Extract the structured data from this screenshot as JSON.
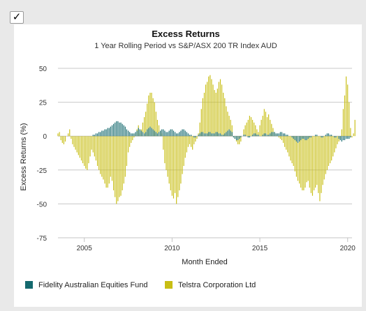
{
  "checkbox": {
    "checked": true,
    "glyph": "✓"
  },
  "chart_data": {
    "type": "bar",
    "title": "Excess Returns",
    "subtitle": "1 Year Rolling Period vs S&P/ASX 200 TR Index AUD",
    "xlabel": "Month Ended",
    "ylabel": "Excess Returns (%)",
    "ylim": [
      -75,
      50
    ],
    "xlim": [
      2003.5,
      2020.25
    ],
    "y_ticks": [
      "50",
      "25",
      "0",
      "-25",
      "-50",
      "-75"
    ],
    "x_ticks": [
      "2005",
      "2010",
      "2015",
      "2020"
    ],
    "grid": true,
    "legend_position": "bottom-left",
    "month_step_years": 0.0833,
    "series": [
      {
        "name": "Fidelity Australian Equities Fund",
        "color": "#14696e",
        "segments": [
          {
            "start": 2003.5,
            "values": [
              0,
              0,
              0,
              0,
              0,
              0,
              0,
              0,
              0,
              0,
              0,
              0,
              0,
              0,
              0,
              0,
              0,
              0,
              0,
              0,
              0,
              0,
              0,
              0
            ]
          },
          {
            "start": 2005.5,
            "values": [
              1,
              1,
              2,
              2,
              3,
              3,
              4,
              4,
              5,
              5,
              6,
              6,
              7,
              8,
              9,
              10,
              11,
              11,
              10,
              10,
              9,
              8,
              7,
              5
            ]
          },
          {
            "start": 2007.5,
            "values": [
              4,
              3,
              2,
              2,
              2,
              3,
              4,
              6,
              5,
              4,
              3,
              2,
              3,
              5,
              6,
              7,
              6,
              5,
              4,
              3,
              2,
              3,
              4,
              5
            ]
          },
          {
            "start": 2009.5,
            "values": [
              5,
              4,
              3,
              3,
              4,
              5,
              5,
              4,
              3,
              2,
              2,
              3,
              4,
              5,
              5,
              4,
              3,
              2,
              1,
              1,
              0,
              -1,
              -1,
              0
            ]
          },
          {
            "start": 2011.5,
            "values": [
              1,
              2,
              3,
              3,
              2,
              2,
              2,
              3,
              3,
              2,
              2,
              2,
              3,
              3,
              2,
              2,
              1,
              1,
              2,
              3,
              4,
              5,
              4,
              3
            ]
          },
          {
            "start": 2013.5,
            "values": [
              -1,
              -2,
              -3,
              -3,
              -2,
              -1,
              0,
              1,
              1,
              0,
              -1,
              -1,
              0,
              1,
              2,
              2,
              1,
              1,
              0,
              0,
              1,
              2,
              2,
              1
            ]
          },
          {
            "start": 2015.5,
            "values": [
              1,
              2,
              3,
              3,
              3,
              2,
              2,
              2,
              3,
              3,
              2,
              2,
              1,
              1,
              0,
              0,
              -1,
              -2,
              -3,
              -4,
              -5,
              -4,
              -3,
              -2
            ]
          },
          {
            "start": 2017.5,
            "values": [
              -2,
              -3,
              -3,
              -2,
              -1,
              -1,
              0,
              0,
              1,
              1,
              0,
              0,
              -1,
              -1,
              0,
              1,
              2,
              2,
              1,
              1,
              0,
              -1,
              -1,
              0
            ]
          },
          {
            "start": 2019.5,
            "values": [
              -2,
              -3,
              -4,
              -3,
              -3,
              -2,
              -2,
              -2,
              -1
            ]
          }
        ]
      },
      {
        "name": "Telstra Corporation Ltd",
        "color": "#c8be14",
        "segments": [
          {
            "start": 2003.5,
            "values": [
              2,
              3,
              -3,
              -5,
              -6,
              -4,
              0,
              2,
              5,
              -2,
              -6,
              -8,
              -10,
              -12,
              -14,
              -16,
              -18,
              -20,
              -22,
              -24,
              -25,
              -20,
              -15,
              -10
            ]
          },
          {
            "start": 2005.5,
            "values": [
              -12,
              -15,
              -18,
              -22,
              -25,
              -28,
              -30,
              -32,
              -35,
              -38,
              -38,
              -35,
              -30,
              -33,
              -40,
              -45,
              -50,
              -48,
              -45,
              -44,
              -40,
              -35,
              -30,
              -22
            ]
          },
          {
            "start": 2007.5,
            "values": [
              -12,
              -8,
              -5,
              -3,
              -1,
              2,
              5,
              8,
              2,
              5,
              10,
              14,
              18,
              24,
              30,
              32,
              32,
              28,
              25,
              18,
              12,
              8,
              4,
              2
            ]
          },
          {
            "start": 2009.5,
            "values": [
              -10,
              -20,
              -25,
              -30,
              -35,
              -40,
              -44,
              -46,
              -42,
              -50,
              -45,
              -40,
              -35,
              -28,
              -22,
              -16,
              -12,
              -8,
              -6,
              -8,
              -10,
              -6,
              -4,
              -2
            ]
          },
          {
            "start": 2011.5,
            "values": [
              2,
              10,
              20,
              28,
              32,
              38,
              40,
              44,
              45,
              42,
              38,
              34,
              32,
              35,
              40,
              42,
              38,
              32,
              28,
              22,
              18,
              15,
              12,
              8
            ]
          },
          {
            "start": 2013.5,
            "values": [
              0,
              -2,
              -4,
              -6,
              -6,
              -4,
              0,
              5,
              8,
              10,
              12,
              15,
              14,
              12,
              10,
              8,
              5,
              3,
              8,
              12,
              15,
              20,
              18,
              14
            ]
          },
          {
            "start": 2015.5,
            "values": [
              16,
              12,
              9,
              6,
              3,
              1,
              0,
              -1,
              -2,
              -3,
              -5,
              -8,
              -10,
              -12,
              -15,
              -18,
              -20,
              -22,
              -26,
              -30,
              -33,
              -35,
              -38,
              -40
            ]
          },
          {
            "start": 2017.5,
            "values": [
              -40,
              -38,
              -34,
              -33,
              -38,
              -42,
              -44,
              -40,
              -38,
              -36,
              -42,
              -48,
              -42,
              -36,
              -32,
              -28,
              -25,
              -22,
              -20,
              -18,
              -15,
              -12,
              -9,
              -6
            ]
          },
          {
            "start": 2019.5,
            "values": [
              -4,
              -2,
              5,
              20,
              30,
              44,
              38,
              25,
              6,
              -1,
              2,
              12
            ]
          }
        ]
      }
    ]
  }
}
